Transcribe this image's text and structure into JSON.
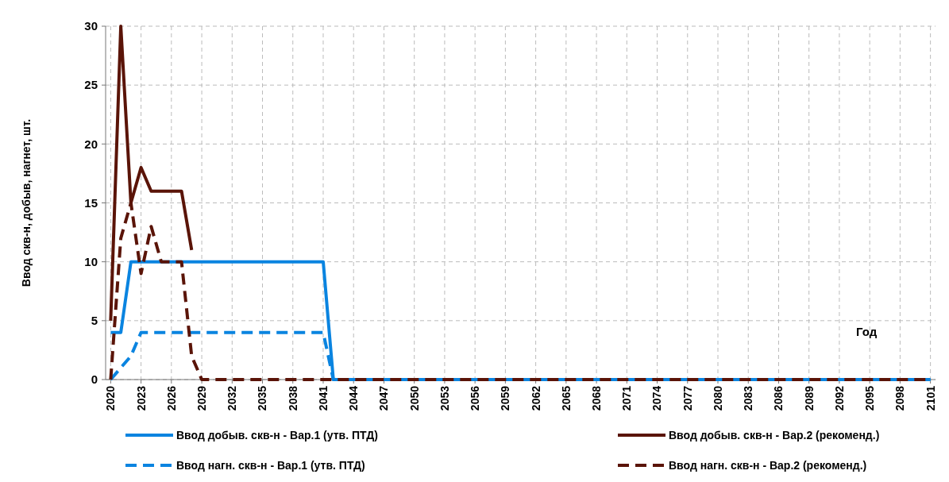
{
  "chart_data": {
    "type": "line",
    "ylabel": "Ввод скв-н, добыв, нагнет, шт.",
    "xlabel": "Год",
    "xlim": [
      2019.5,
      2101.5
    ],
    "xticks": [
      2020,
      2023,
      2026,
      2029,
      2032,
      2035,
      2038,
      2041,
      2044,
      2047,
      2050,
      2053,
      2056,
      2059,
      2062,
      2065,
      2068,
      2071,
      2074,
      2077,
      2080,
      2083,
      2086,
      2089,
      2092,
      2095,
      2098,
      2101
    ],
    "ylim": [
      0,
      30
    ],
    "yticks": [
      0,
      5,
      10,
      15,
      20,
      25,
      30
    ],
    "grid": true,
    "legend": "bottom",
    "marker": "none",
    "series": [
      {
        "name": "Ввод добыв. скв-н - Вар.1 (утв. ПТД)",
        "color": "#0a84e0",
        "line_style": "solid",
        "x": [
          2020,
          2021,
          2022,
          2041,
          2042,
          2101
        ],
        "values": [
          4,
          4,
          10,
          10,
          0,
          0
        ]
      },
      {
        "name": "Ввод добыв. скв-н - Вар.2 (рекоменд.)",
        "color": "#5a1408",
        "line_style": "solid",
        "x": [
          2020,
          2021,
          2022,
          2023,
          2024,
          2027,
          2028
        ],
        "values": [
          5,
          30,
          15,
          18,
          16,
          16,
          11
        ]
      },
      {
        "name": "Ввод нагн. скв-н - Вар.1 (утв. ПТД)",
        "color": "#0a84e0",
        "line_style": "dashed",
        "x": [
          2020,
          2021,
          2022,
          2023,
          2041,
          2042,
          2101
        ],
        "values": [
          0,
          1,
          2,
          4,
          4,
          0,
          0
        ]
      },
      {
        "name": "Ввод нагн. скв-н - Вар.2 (рекоменд.)",
        "color": "#5a1408",
        "line_style": "dashed",
        "x": [
          2020,
          2021,
          2022,
          2023,
          2024,
          2025,
          2027,
          2028,
          2029,
          2101
        ],
        "values": [
          0,
          12,
          15,
          9,
          13,
          10,
          10,
          2,
          0,
          0
        ]
      }
    ]
  }
}
